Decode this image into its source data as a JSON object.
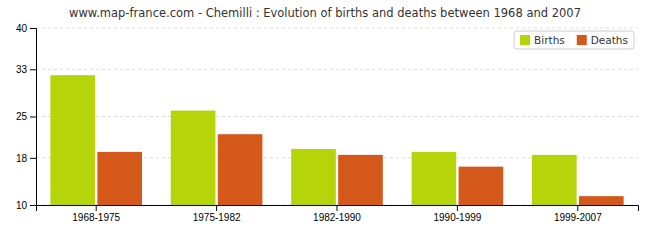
{
  "chart_data": {
    "type": "bar",
    "title": "www.map-france.com - Chemilli : Evolution of births and deaths between 1968 and 2007",
    "categories": [
      "1968-1975",
      "1975-1982",
      "1982-1990",
      "1990-1999",
      "1999-2007"
    ],
    "series": [
      {
        "name": "Births",
        "color": "#b5d40a",
        "values": [
          32,
          26,
          19.5,
          19,
          18.5
        ]
      },
      {
        "name": "Deaths",
        "color": "#d4581a",
        "values": [
          19,
          22,
          18.5,
          16.5,
          11.5
        ]
      }
    ],
    "ylim": [
      10,
      40
    ],
    "yticks": [
      10,
      18,
      25,
      33,
      40
    ],
    "grid": true,
    "legend": "upper right"
  }
}
